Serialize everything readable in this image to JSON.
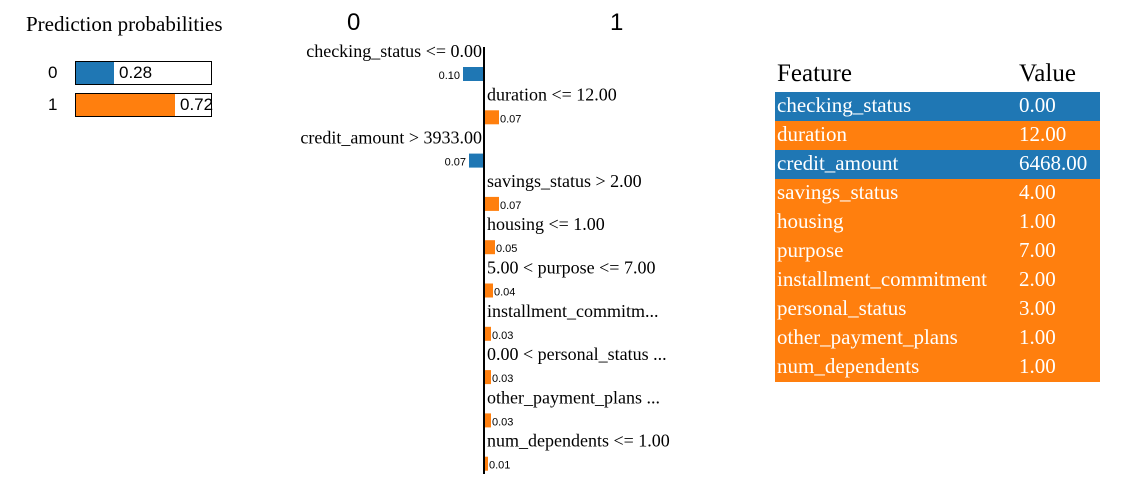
{
  "colors": {
    "negative": "#1f77b4",
    "positive": "#ff7f0e",
    "text": "#000000",
    "row_text": "#ffffff"
  },
  "prediction_probabilities": {
    "title": "Prediction probabilities",
    "rows": [
      {
        "class": "0",
        "value_label": "0.28",
        "value": 0.28,
        "color": "#1f77b4"
      },
      {
        "class": "1",
        "value_label": "0.72",
        "value": 0.72,
        "color": "#ff7f0e"
      }
    ]
  },
  "explanation": {
    "class_negative": "0",
    "class_positive": "1"
  },
  "chart_data": {
    "type": "bar",
    "orientation": "horizontal",
    "categories": [
      "checking_status <= 0.00",
      "duration <= 12.00",
      "credit_amount > 3933.00",
      "savings_status > 2.00",
      "housing <= 1.00",
      "5.00 < purpose <= 7.00",
      "installment_commitm...",
      "0.00 < personal_status ...",
      "other_payment_plans ...",
      "num_dependents <= 1.00"
    ],
    "values": [
      0.1,
      0.07,
      0.07,
      0.07,
      0.05,
      0.04,
      0.03,
      0.03,
      0.03,
      0.01
    ],
    "value_labels": [
      "0.10",
      "0.07",
      "0.07",
      "0.07",
      "0.05",
      "0.04",
      "0.03",
      "0.03",
      "0.03",
      "0.01"
    ],
    "sides": [
      "negative",
      "positive",
      "negative",
      "positive",
      "positive",
      "positive",
      "positive",
      "positive",
      "positive",
      "positive"
    ],
    "series": [
      {
        "name": "0",
        "color": "#1f77b4"
      },
      {
        "name": "1",
        "color": "#ff7f0e"
      }
    ],
    "title": "",
    "xlabel": "",
    "ylabel": ""
  },
  "feature_table": {
    "header": {
      "feature": "Feature",
      "value": "Value"
    },
    "rows": [
      {
        "feature": "checking_status",
        "value": "0.00",
        "color": "#1f77b4"
      },
      {
        "feature": "duration",
        "value": "12.00",
        "color": "#ff7f0e"
      },
      {
        "feature": "credit_amount",
        "value": "6468.00",
        "color": "#1f77b4"
      },
      {
        "feature": "savings_status",
        "value": "4.00",
        "color": "#ff7f0e"
      },
      {
        "feature": "housing",
        "value": "1.00",
        "color": "#ff7f0e"
      },
      {
        "feature": "purpose",
        "value": "7.00",
        "color": "#ff7f0e"
      },
      {
        "feature": "installment_commitment",
        "value": "2.00",
        "color": "#ff7f0e"
      },
      {
        "feature": "personal_status",
        "value": "3.00",
        "color": "#ff7f0e"
      },
      {
        "feature": "other_payment_plans",
        "value": "1.00",
        "color": "#ff7f0e"
      },
      {
        "feature": "num_dependents",
        "value": "1.00",
        "color": "#ff7f0e"
      }
    ]
  }
}
